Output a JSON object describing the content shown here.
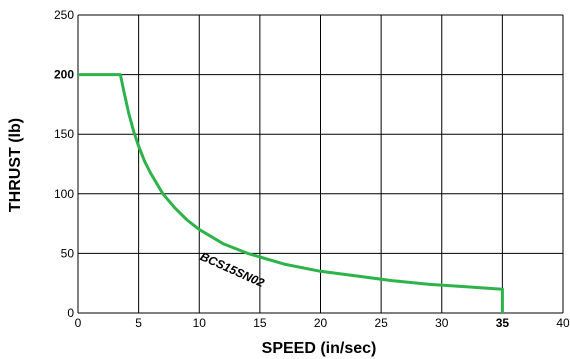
{
  "chart_data": {
    "type": "line",
    "xlabel": "SPEED (in/sec)",
    "ylabel": "THRUST (lb)",
    "xlim": [
      0,
      40
    ],
    "ylim": [
      0,
      250
    ],
    "xticks": [
      0,
      5,
      10,
      15,
      20,
      25,
      30,
      35,
      40
    ],
    "yticks": [
      0,
      50,
      100,
      150,
      200,
      250
    ],
    "x_tick_labels": [
      "0",
      "5",
      "10",
      "15",
      "20",
      "25",
      "30",
      "35",
      "40"
    ],
    "y_tick_labels": [
      "0",
      "50",
      "100",
      "150",
      "200",
      "250"
    ],
    "bold_x_ticks": [
      "35"
    ],
    "bold_y_ticks": [
      "200"
    ],
    "grid": true,
    "line_color": "#2db34a",
    "series": [
      {
        "name": "BCS15SN02",
        "x": [
          0,
          3.5,
          3.8,
          4.2,
          4.6,
          5,
          5.5,
          6,
          7,
          8,
          9,
          10,
          11,
          12,
          13,
          14,
          15,
          17,
          20,
          23,
          26,
          29,
          32,
          35,
          35
        ],
        "y": [
          200,
          200,
          185,
          167,
          152,
          140,
          127,
          117,
          100,
          88,
          78,
          70,
          64,
          58,
          54,
          50,
          47,
          41,
          35,
          31,
          27,
          24,
          22,
          20,
          0
        ]
      }
    ],
    "annotations": [
      {
        "text": "BCS15SN02",
        "x": 10,
        "y": 45
      }
    ]
  }
}
